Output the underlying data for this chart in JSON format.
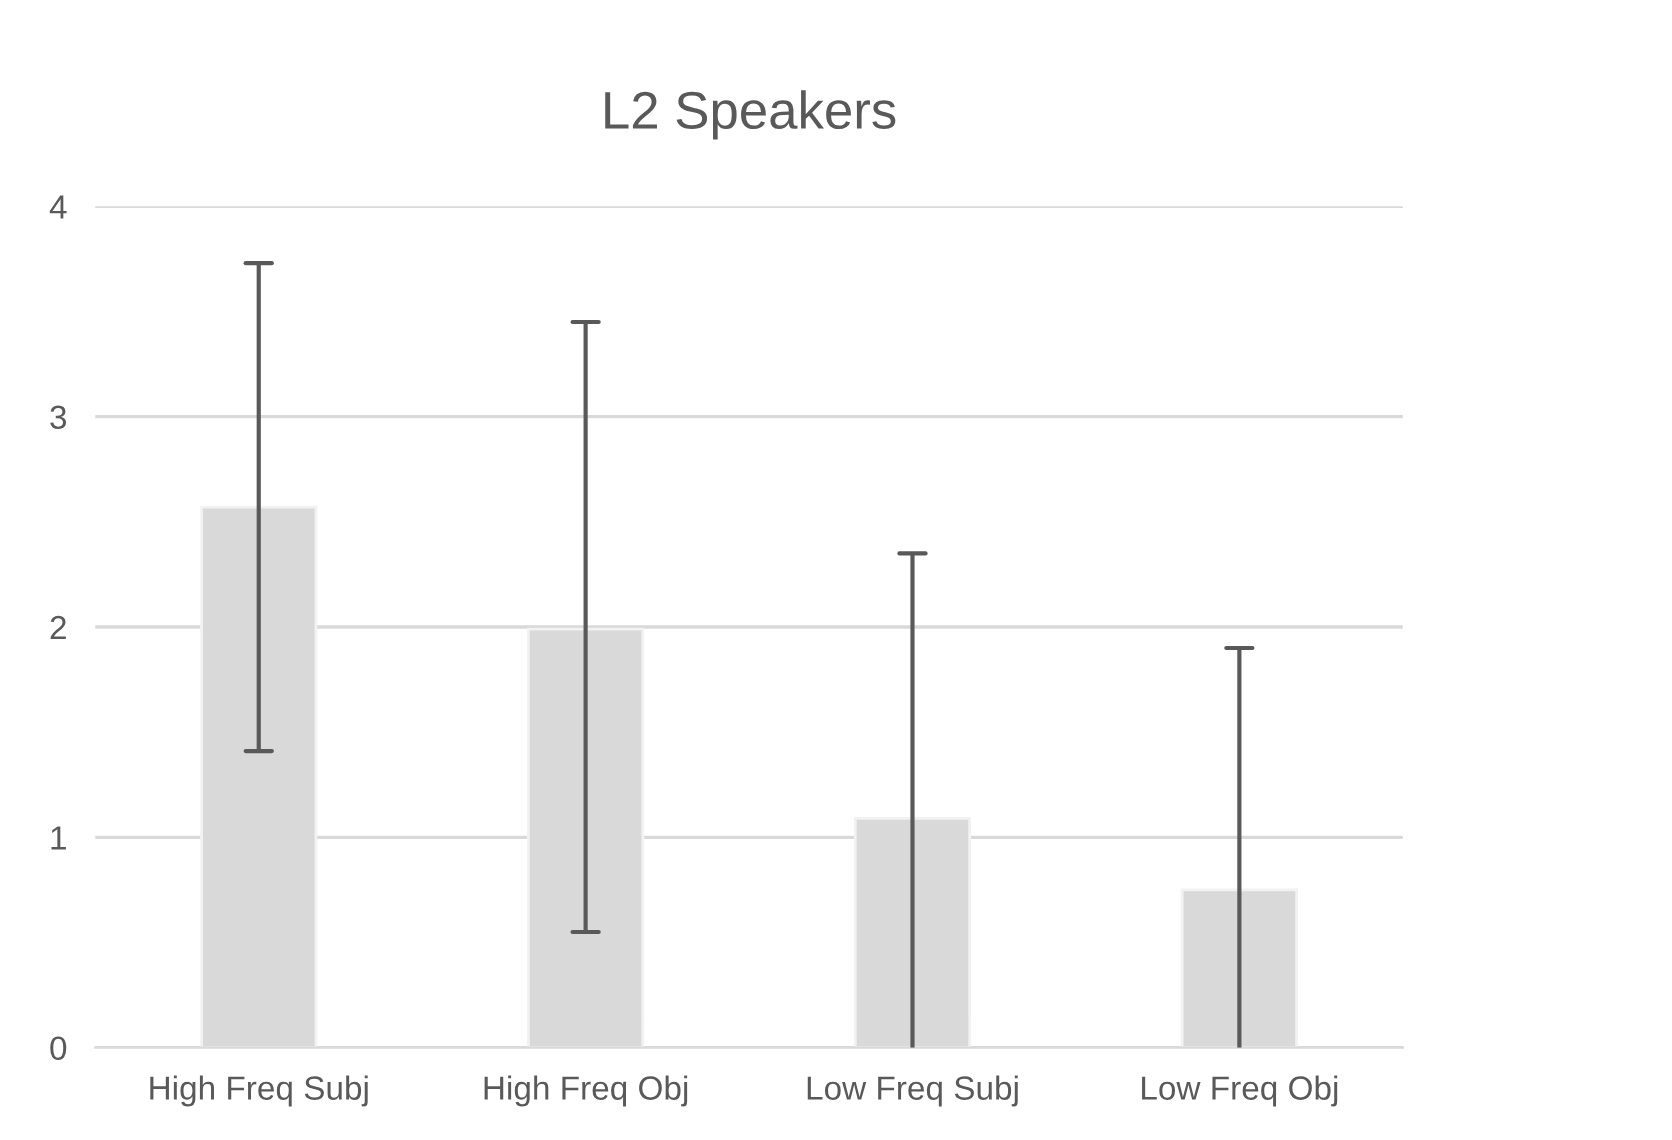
{
  "chart_data": {
    "type": "bar",
    "title": "L2 Speakers",
    "categories": [
      "High Freq Subj",
      "High Freq Obj",
      "Low Freq Subj",
      "Low Freq Obj"
    ],
    "values": [
      2.57,
      1.99,
      1.09,
      0.75
    ],
    "errors": [
      [
        1.41,
        3.73
      ],
      [
        0.55,
        3.45
      ],
      [
        0,
        2.35
      ],
      [
        0,
        1.9
      ]
    ],
    "color": "#d9d9d9",
    "ylim": [
      0,
      4
    ],
    "yticks": [
      0,
      1,
      2,
      3,
      4
    ],
    "grid": "y"
  }
}
